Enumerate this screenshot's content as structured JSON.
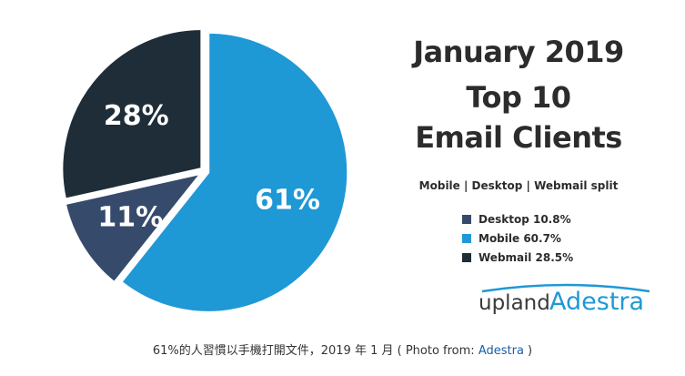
{
  "chart_data": {
    "type": "pie",
    "title_lines": [
      "January 2019",
      "Top 10",
      "Email Clients"
    ],
    "subtitle": "Mobile | Desktop | Webmail split",
    "slices": [
      {
        "name": "Mobile",
        "value": 60.7,
        "label": "61%",
        "color": "#1f98d6"
      },
      {
        "name": "Desktop",
        "value": 10.8,
        "label": "11%",
        "color": "#364b6b"
      },
      {
        "name": "Webmail",
        "value": 28.5,
        "label": "28%",
        "color": "#1f2d38"
      }
    ],
    "legend": [
      {
        "label": "Desktop 10.8%",
        "color": "#364b6b"
      },
      {
        "label": "Mobile 60.7%",
        "color": "#1f98d6"
      },
      {
        "label": "Webmail 28.5%",
        "color": "#1f2d38"
      }
    ],
    "legend_position": "right"
  },
  "logo": {
    "word_1": "upland",
    "word_2": "Adestra",
    "accent_color": "#1f98d6"
  },
  "caption": {
    "text": "61%的人習慣以手機打開文件，2019 年 1 月 ( Photo from: ",
    "link_text": "Adestra",
    "suffix": " )"
  }
}
